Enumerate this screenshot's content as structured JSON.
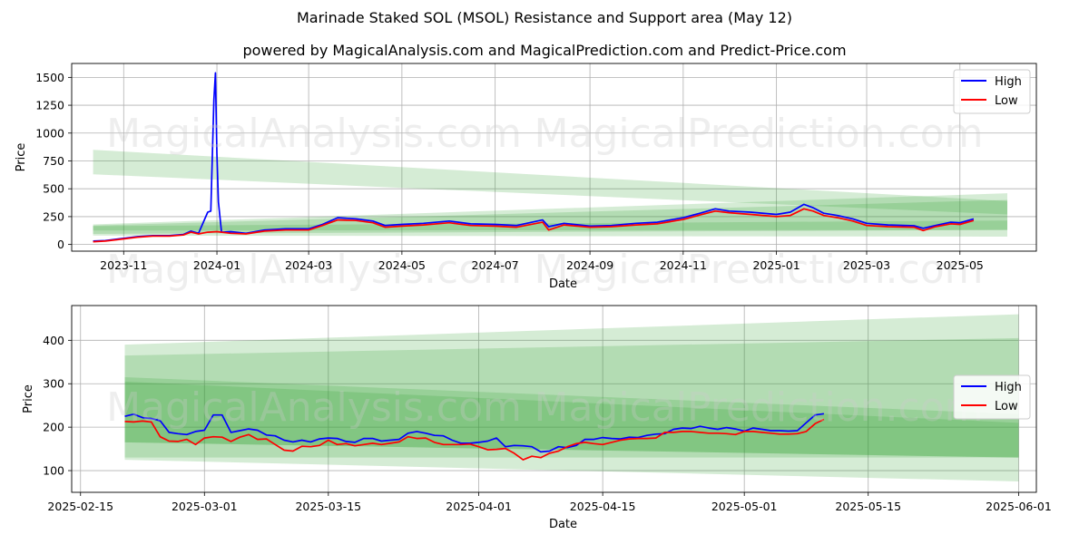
{
  "title": "Marinade Staked SOL (MSOL) Resistance and Support area (May 12)",
  "subtitle": "powered by MagicalAnalysis.com and MagicalPrediction.com and Predict-Price.com",
  "watermarks": [
    "MagicalAnalysis.com",
    "MagicalPrediction.com"
  ],
  "colors": {
    "high": "#0000ff",
    "low": "#ff0000",
    "band": "#2ca02c",
    "grid": "#b0b0b0"
  },
  "chart_data": [
    {
      "type": "line",
      "xlabel": "Date",
      "ylabel": "Price",
      "xlim": [
        "2023-09-28",
        "2025-06-20"
      ],
      "ylim": [
        -60,
        1625
      ],
      "grid": true,
      "legend": "top-right",
      "xticks": [
        "2023-11",
        "2024-01",
        "2024-03",
        "2024-05",
        "2024-07",
        "2024-09",
        "2024-11",
        "2025-01",
        "2025-03",
        "2025-05"
      ],
      "yticks": [
        0,
        250,
        500,
        750,
        1000,
        1250,
        1500
      ],
      "series": [
        {
          "name": "High",
          "x": [
            "2023-10-12",
            "2023-10-20",
            "2023-11-01",
            "2023-11-10",
            "2023-11-20",
            "2023-12-01",
            "2023-12-10",
            "2023-12-15",
            "2023-12-20",
            "2023-12-26",
            "2023-12-28",
            "2023-12-30",
            "2023-12-31",
            "2024-01-01",
            "2024-01-02",
            "2024-01-04",
            "2024-01-10",
            "2024-01-20",
            "2024-02-01",
            "2024-02-15",
            "2024-03-01",
            "2024-03-10",
            "2024-03-20",
            "2024-04-01",
            "2024-04-12",
            "2024-04-20",
            "2024-05-01",
            "2024-05-15",
            "2024-06-01",
            "2024-06-15",
            "2024-07-01",
            "2024-07-15",
            "2024-08-01",
            "2024-08-05",
            "2024-08-15",
            "2024-09-01",
            "2024-09-15",
            "2024-10-01",
            "2024-10-15",
            "2024-11-01",
            "2024-11-12",
            "2024-11-22",
            "2024-12-01",
            "2024-12-15",
            "2025-01-01",
            "2025-01-10",
            "2025-01-19",
            "2025-01-25",
            "2025-02-01",
            "2025-02-10",
            "2025-02-20",
            "2025-03-01",
            "2025-03-15",
            "2025-04-01",
            "2025-04-07",
            "2025-04-15",
            "2025-04-25",
            "2025-05-01",
            "2025-05-10"
          ],
          "values": [
            30,
            35,
            55,
            70,
            80,
            80,
            90,
            120,
            100,
            290,
            300,
            1300,
            1540,
            820,
            380,
            110,
            115,
            100,
            130,
            140,
            140,
            180,
            240,
            230,
            210,
            170,
            180,
            190,
            210,
            185,
            180,
            170,
            220,
            160,
            190,
            165,
            170,
            190,
            200,
            240,
            280,
            320,
            300,
            290,
            270,
            290,
            360,
            330,
            280,
            260,
            230,
            190,
            175,
            168,
            145,
            170,
            200,
            195,
            230
          ]
        },
        {
          "name": "Low",
          "x": [
            "2023-10-12",
            "2023-10-20",
            "2023-11-01",
            "2023-11-10",
            "2023-11-20",
            "2023-12-01",
            "2023-12-10",
            "2023-12-15",
            "2023-12-20",
            "2023-12-26",
            "2024-01-01",
            "2024-01-10",
            "2024-01-20",
            "2024-02-01",
            "2024-02-15",
            "2024-03-01",
            "2024-03-10",
            "2024-03-20",
            "2024-04-01",
            "2024-04-12",
            "2024-04-20",
            "2024-05-01",
            "2024-05-15",
            "2024-06-01",
            "2024-06-15",
            "2024-07-01",
            "2024-07-15",
            "2024-08-01",
            "2024-08-05",
            "2024-08-15",
            "2024-09-01",
            "2024-09-15",
            "2024-10-01",
            "2024-10-15",
            "2024-11-01",
            "2024-11-12",
            "2024-11-22",
            "2024-12-01",
            "2024-12-15",
            "2025-01-01",
            "2025-01-10",
            "2025-01-19",
            "2025-01-25",
            "2025-02-01",
            "2025-02-10",
            "2025-02-20",
            "2025-03-01",
            "2025-03-15",
            "2025-04-01",
            "2025-04-07",
            "2025-04-15",
            "2025-04-25",
            "2025-05-01",
            "2025-05-10"
          ],
          "values": [
            25,
            30,
            50,
            65,
            75,
            75,
            85,
            110,
            95,
            110,
            115,
            100,
            95,
            120,
            130,
            130,
            170,
            220,
            215,
            195,
            155,
            165,
            175,
            195,
            170,
            165,
            155,
            200,
            130,
            175,
            155,
            160,
            175,
            185,
            225,
            265,
            300,
            285,
            270,
            250,
            260,
            320,
            300,
            260,
            240,
            210,
            170,
            160,
            155,
            125,
            160,
            185,
            180,
            215
          ]
        }
      ],
      "bands": [
        {
          "x": [
            "2023-10-12",
            "2025-06-01"
          ],
          "upper": [
            850,
            390
          ],
          "lower": [
            630,
            270
          ]
        },
        {
          "x": [
            "2023-10-12",
            "2025-06-01"
          ],
          "upper": [
            180,
            460
          ],
          "lower": [
            80,
            70
          ]
        },
        {
          "x": [
            "2023-10-12",
            "2025-06-01"
          ],
          "upper": [
            170,
            400
          ],
          "lower": [
            95,
            130
          ]
        },
        {
          "x": [
            "2023-10-12",
            "2025-06-01"
          ],
          "upper": [
            165,
            215
          ],
          "lower": [
            125,
            130
          ]
        }
      ]
    },
    {
      "type": "line",
      "xlabel": "Date",
      "ylabel": "Price",
      "xlim": [
        "2025-02-14",
        "2025-06-03"
      ],
      "ylim": [
        50,
        480
      ],
      "grid": true,
      "legend": "center-right",
      "xticks": [
        "2025-02-15",
        "2025-03-01",
        "2025-03-15",
        "2025-04-01",
        "2025-04-15",
        "2025-05-01",
        "2025-05-15",
        "2025-06-01"
      ],
      "yticks": [
        100,
        200,
        300,
        400
      ],
      "series": [
        {
          "name": "High",
          "x": [
            "2025-02-20",
            "2025-02-21",
            "2025-02-22",
            "2025-02-23",
            "2025-02-24",
            "2025-02-25",
            "2025-02-26",
            "2025-02-27",
            "2025-02-28",
            "2025-03-01",
            "2025-03-02",
            "2025-03-03",
            "2025-03-04",
            "2025-03-05",
            "2025-03-06",
            "2025-03-07",
            "2025-03-08",
            "2025-03-09",
            "2025-03-10",
            "2025-03-11",
            "2025-03-12",
            "2025-03-13",
            "2025-03-14",
            "2025-03-15",
            "2025-03-16",
            "2025-03-17",
            "2025-03-18",
            "2025-03-19",
            "2025-03-20",
            "2025-03-21",
            "2025-03-22",
            "2025-03-23",
            "2025-03-24",
            "2025-03-25",
            "2025-03-26",
            "2025-03-27",
            "2025-03-28",
            "2025-03-29",
            "2025-03-30",
            "2025-03-31",
            "2025-04-01",
            "2025-04-02",
            "2025-04-03",
            "2025-04-04",
            "2025-04-05",
            "2025-04-06",
            "2025-04-07",
            "2025-04-08",
            "2025-04-09",
            "2025-04-10",
            "2025-04-11",
            "2025-04-12",
            "2025-04-13",
            "2025-04-14",
            "2025-04-15",
            "2025-04-16",
            "2025-04-17",
            "2025-04-18",
            "2025-04-19",
            "2025-04-20",
            "2025-04-21",
            "2025-04-22",
            "2025-04-23",
            "2025-04-24",
            "2025-04-25",
            "2025-04-26",
            "2025-04-27",
            "2025-04-28",
            "2025-04-29",
            "2025-04-30",
            "2025-05-01",
            "2025-05-02",
            "2025-05-03",
            "2025-05-04",
            "2025-05-05",
            "2025-05-06",
            "2025-05-07",
            "2025-05-08",
            "2025-05-09",
            "2025-05-10"
          ],
          "values": [
            225,
            230,
            222,
            220,
            215,
            188,
            185,
            183,
            190,
            193,
            228,
            228,
            188,
            192,
            196,
            193,
            182,
            180,
            170,
            166,
            170,
            166,
            173,
            175,
            174,
            167,
            165,
            174,
            174,
            168,
            170,
            172,
            186,
            190,
            186,
            181,
            180,
            170,
            163,
            163,
            165,
            168,
            175,
            155,
            158,
            157,
            155,
            143,
            145,
            155,
            153,
            158,
            172,
            172,
            176,
            174,
            173,
            177,
            176,
            181,
            184,
            185,
            195,
            198,
            197,
            202,
            198,
            195,
            199,
            196,
            191,
            198,
            195,
            192,
            192,
            191,
            192,
            210,
            228,
            231
          ]
        },
        {
          "name": "Low",
          "x": [
            "2025-02-20",
            "2025-02-21",
            "2025-02-22",
            "2025-02-23",
            "2025-02-24",
            "2025-02-25",
            "2025-02-26",
            "2025-02-27",
            "2025-02-28",
            "2025-03-01",
            "2025-03-02",
            "2025-03-03",
            "2025-03-04",
            "2025-03-05",
            "2025-03-06",
            "2025-03-07",
            "2025-03-08",
            "2025-03-09",
            "2025-03-10",
            "2025-03-11",
            "2025-03-12",
            "2025-03-13",
            "2025-03-14",
            "2025-03-15",
            "2025-03-16",
            "2025-03-17",
            "2025-03-18",
            "2025-03-19",
            "2025-03-20",
            "2025-03-21",
            "2025-03-22",
            "2025-03-23",
            "2025-03-24",
            "2025-03-25",
            "2025-03-26",
            "2025-03-27",
            "2025-03-28",
            "2025-03-29",
            "2025-03-30",
            "2025-03-31",
            "2025-04-01",
            "2025-04-02",
            "2025-04-03",
            "2025-04-04",
            "2025-04-05",
            "2025-04-06",
            "2025-04-07",
            "2025-04-08",
            "2025-04-09",
            "2025-04-10",
            "2025-04-11",
            "2025-04-12",
            "2025-04-13",
            "2025-04-14",
            "2025-04-15",
            "2025-04-16",
            "2025-04-17",
            "2025-04-18",
            "2025-04-19",
            "2025-04-20",
            "2025-04-21",
            "2025-04-22",
            "2025-04-23",
            "2025-04-24",
            "2025-04-25",
            "2025-04-26",
            "2025-04-27",
            "2025-04-28",
            "2025-04-29",
            "2025-04-30",
            "2025-05-01",
            "2025-05-02",
            "2025-05-03",
            "2025-05-04",
            "2025-05-05",
            "2025-05-06",
            "2025-05-07",
            "2025-05-08",
            "2025-05-09",
            "2025-05-10"
          ],
          "values": [
            213,
            212,
            214,
            212,
            178,
            168,
            167,
            172,
            160,
            175,
            178,
            177,
            167,
            177,
            183,
            172,
            173,
            160,
            147,
            145,
            156,
            155,
            158,
            170,
            160,
            162,
            157,
            160,
            163,
            160,
            163,
            166,
            178,
            174,
            175,
            165,
            160,
            160,
            160,
            161,
            155,
            148,
            149,
            151,
            140,
            125,
            133,
            130,
            140,
            145,
            155,
            162,
            165,
            162,
            160,
            165,
            170,
            173,
            174,
            174,
            175,
            188,
            188,
            190,
            190,
            188,
            186,
            186,
            185,
            183,
            190,
            190,
            188,
            186,
            184,
            184,
            185,
            190,
            208,
            218
          ]
        }
      ],
      "bands": [
        {
          "x": [
            "2025-02-20",
            "2025-06-01"
          ],
          "upper": [
            390,
            460
          ],
          "lower": [
            125,
            75
          ]
        },
        {
          "x": [
            "2025-02-20",
            "2025-06-01"
          ],
          "upper": [
            365,
            405
          ],
          "lower": [
            130,
            130
          ]
        },
        {
          "x": [
            "2025-02-20",
            "2025-06-01"
          ],
          "upper": [
            315,
            230
          ],
          "lower": [
            165,
            130
          ]
        },
        {
          "x": [
            "2025-02-20",
            "2025-06-01"
          ],
          "upper": [
            305,
            210
          ],
          "lower": [
            165,
            130
          ]
        }
      ]
    }
  ]
}
